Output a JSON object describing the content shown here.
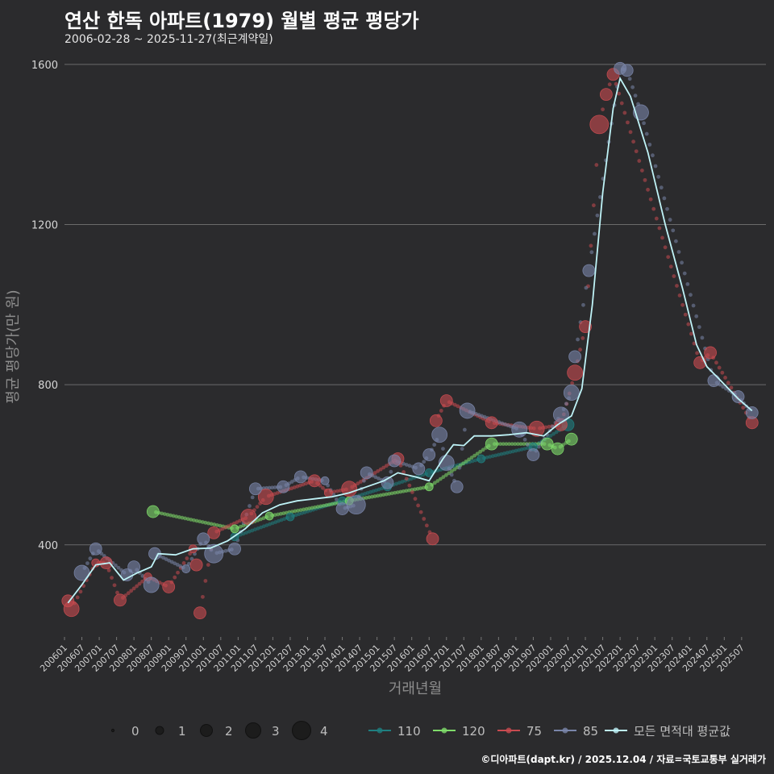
{
  "header": {
    "title": "연산 한독 아파트(1979) 월별 평균 평당가",
    "subtitle": "2006-02-28 ~ 2025-11-27(최근계약일)"
  },
  "footer": {
    "credit": "©디아파트(dapt.kr) / 2025.12.04 / 자료=국토교통부 실거래가"
  },
  "colors": {
    "background": "#2b2b2d",
    "grid": "#6b6b6b",
    "s110": "#1f7f80",
    "s120": "#7fdc6a",
    "s75": "#c94b50",
    "s85": "#7a86aa",
    "avg": "#bff3f7"
  },
  "chart_data": {
    "type": "scatter",
    "title": "연산 한독 아파트(1979) 월별 평균 평당가",
    "xlabel": "거래년월",
    "ylabel": "평균 평당가(만 원)",
    "ylim": [
      170,
      1640
    ],
    "yticks": [
      400,
      800,
      1200,
      1600
    ],
    "xticks": [
      "200601",
      "200607",
      "200701",
      "200707",
      "200801",
      "200807",
      "200901",
      "200907",
      "201001",
      "201007",
      "201101",
      "201107",
      "201201",
      "201207",
      "201301",
      "201307",
      "201401",
      "201407",
      "201501",
      "201507",
      "201601",
      "201607",
      "201701",
      "201707",
      "201801",
      "201807",
      "201901",
      "201907",
      "202001",
      "202007",
      "202101",
      "202107",
      "202201",
      "202207",
      "202301",
      "202307",
      "202401",
      "202407",
      "202501",
      "202507"
    ],
    "size_legend": {
      "values": [
        "0",
        "1",
        "2",
        "3",
        "4"
      ]
    },
    "series": [
      {
        "name": "110",
        "color_key": "s110",
        "points": [
          [
            2010.9,
            420,
            1
          ],
          [
            2012.5,
            470,
            1
          ],
          [
            2014.0,
            510,
            1
          ],
          [
            2015.3,
            545,
            1
          ],
          [
            2016.5,
            580,
            1
          ],
          [
            2018.0,
            615,
            1
          ],
          [
            2019.5,
            645,
            1
          ],
          [
            2020.5,
            700,
            2
          ]
        ]
      },
      {
        "name": "120",
        "color_key": "s120",
        "points": [
          [
            2008.55,
            483,
            2
          ],
          [
            2010.9,
            440,
            1
          ],
          [
            2011.9,
            472,
            1
          ],
          [
            2014.2,
            510,
            1
          ],
          [
            2016.5,
            545,
            1
          ],
          [
            2018.3,
            652,
            2
          ],
          [
            2019.9,
            652,
            2
          ],
          [
            2020.2,
            640,
            2
          ],
          [
            2020.6,
            664,
            2
          ]
        ]
      },
      {
        "name": "75",
        "color_key": "s75",
        "points": [
          [
            2006.1,
            260,
            2
          ],
          [
            2006.2,
            240,
            3
          ],
          [
            2006.9,
            355,
            1
          ],
          [
            2007.2,
            355,
            2
          ],
          [
            2007.6,
            262,
            2
          ],
          [
            2008.4,
            320,
            1
          ],
          [
            2009.0,
            295,
            2
          ],
          [
            2009.7,
            390,
            1
          ],
          [
            2009.8,
            350,
            2
          ],
          [
            2009.9,
            230,
            2
          ],
          [
            2010.3,
            430,
            2
          ],
          [
            2011.3,
            470,
            3
          ],
          [
            2011.8,
            520,
            3
          ],
          [
            2013.2,
            560,
            2
          ],
          [
            2013.6,
            530,
            1
          ],
          [
            2014.2,
            540,
            3
          ],
          [
            2015.6,
            615,
            2
          ],
          [
            2016.6,
            415,
            2
          ],
          [
            2016.7,
            710,
            2
          ],
          [
            2017.0,
            760,
            2
          ],
          [
            2018.3,
            705,
            2
          ],
          [
            2019.6,
            690,
            3
          ],
          [
            2020.3,
            700,
            2
          ],
          [
            2020.7,
            830,
            3
          ],
          [
            2021.0,
            945,
            2
          ],
          [
            2021.4,
            1450,
            4
          ],
          [
            2021.6,
            1525,
            2
          ],
          [
            2021.8,
            1575,
            2
          ],
          [
            2024.3,
            855,
            2
          ],
          [
            2024.6,
            880,
            2
          ],
          [
            2025.8,
            705,
            2
          ]
        ]
      },
      {
        "name": "85",
        "color_key": "s85",
        "points": [
          [
            2006.5,
            330,
            3
          ],
          [
            2006.9,
            390,
            2
          ],
          [
            2007.8,
            325,
            2
          ],
          [
            2008.0,
            345,
            2
          ],
          [
            2008.5,
            300,
            3
          ],
          [
            2008.6,
            378,
            2
          ],
          [
            2009.5,
            340,
            1
          ],
          [
            2010.0,
            415,
            2
          ],
          [
            2010.3,
            378,
            4
          ],
          [
            2010.9,
            390,
            2
          ],
          [
            2011.5,
            540,
            2
          ],
          [
            2012.3,
            545,
            2
          ],
          [
            2012.8,
            570,
            2
          ],
          [
            2013.5,
            560,
            1
          ],
          [
            2014.0,
            490,
            2
          ],
          [
            2014.4,
            500,
            4
          ],
          [
            2014.7,
            580,
            2
          ],
          [
            2015.3,
            555,
            2
          ],
          [
            2015.5,
            610,
            2
          ],
          [
            2016.2,
            590,
            2
          ],
          [
            2016.5,
            625,
            2
          ],
          [
            2016.8,
            675,
            3
          ],
          [
            2017.0,
            605,
            3
          ],
          [
            2017.3,
            545,
            2
          ],
          [
            2017.6,
            735,
            3
          ],
          [
            2019.1,
            688,
            3
          ],
          [
            2019.5,
            625,
            2
          ],
          [
            2020.3,
            725,
            3
          ],
          [
            2020.6,
            780,
            3
          ],
          [
            2020.7,
            870,
            2
          ],
          [
            2021.1,
            1085,
            2
          ],
          [
            2022.0,
            1590,
            2
          ],
          [
            2022.2,
            1585,
            2
          ],
          [
            2022.6,
            1480,
            3
          ],
          [
            2024.7,
            810,
            2
          ],
          [
            2025.4,
            770,
            2
          ],
          [
            2025.8,
            730,
            2
          ]
        ]
      },
      {
        "name": "모든 면적대 평균값",
        "color_key": "avg",
        "line": [
          [
            2006.1,
            255
          ],
          [
            2006.5,
            300
          ],
          [
            2006.9,
            350
          ],
          [
            2007.3,
            355
          ],
          [
            2007.7,
            312
          ],
          [
            2008.1,
            330
          ],
          [
            2008.5,
            345
          ],
          [
            2008.7,
            378
          ],
          [
            2009.2,
            375
          ],
          [
            2009.7,
            390
          ],
          [
            2010.2,
            392
          ],
          [
            2010.7,
            410
          ],
          [
            2011.2,
            440
          ],
          [
            2011.7,
            480
          ],
          [
            2012.2,
            500
          ],
          [
            2012.7,
            510
          ],
          [
            2013.2,
            515
          ],
          [
            2013.7,
            520
          ],
          [
            2014.2,
            530
          ],
          [
            2014.7,
            545
          ],
          [
            2015.2,
            560
          ],
          [
            2015.6,
            580
          ],
          [
            2016.1,
            570
          ],
          [
            2016.5,
            560
          ],
          [
            2016.9,
            615
          ],
          [
            2017.2,
            650
          ],
          [
            2017.5,
            648
          ],
          [
            2017.8,
            672
          ],
          [
            2018.3,
            672
          ],
          [
            2018.8,
            675
          ],
          [
            2019.3,
            680
          ],
          [
            2019.8,
            672
          ],
          [
            2020.2,
            700
          ],
          [
            2020.6,
            722
          ],
          [
            2020.9,
            790
          ],
          [
            2021.2,
            1000
          ],
          [
            2021.5,
            1280
          ],
          [
            2021.8,
            1490
          ],
          [
            2022.0,
            1565
          ],
          [
            2022.3,
            1520
          ],
          [
            2022.8,
            1380
          ],
          [
            2023.3,
            1200
          ],
          [
            2023.8,
            1040
          ],
          [
            2024.2,
            900
          ],
          [
            2024.5,
            845
          ],
          [
            2024.9,
            810
          ],
          [
            2025.4,
            765
          ],
          [
            2025.8,
            735
          ]
        ]
      }
    ]
  },
  "legend": {
    "size_values": [
      "0",
      "1",
      "2",
      "3",
      "4"
    ],
    "series_labels": [
      "110",
      "120",
      "75",
      "85",
      "모든 면적대 평균값"
    ]
  }
}
